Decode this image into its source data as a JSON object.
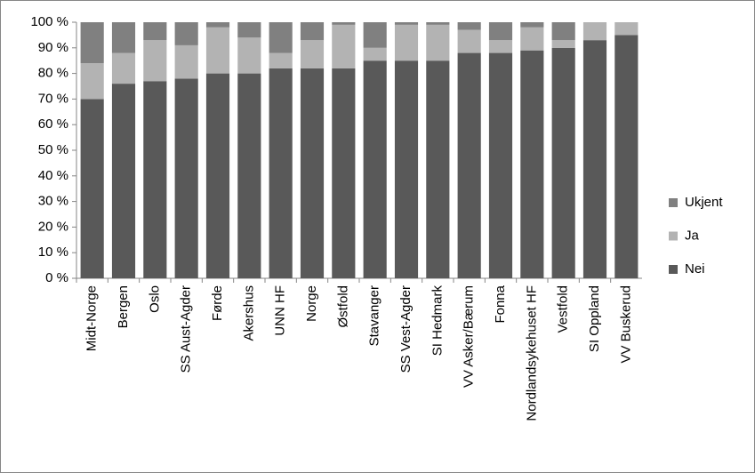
{
  "chart_data": {
    "type": "stacked_bar_100",
    "categories": [
      "Midt-Norge",
      "Bergen",
      "Oslo",
      "SS Aust-Agder",
      "Førde",
      "Akershus",
      "UNN HF",
      "Norge",
      "Østfold",
      "Stavanger",
      "SS Vest-Agder",
      "SI Hedmark",
      "VV Asker/Bærum",
      "Fonna",
      "Nordlandsykehuset HF",
      "Vestfold",
      "SI Oppland",
      "VV Buskerud"
    ],
    "series": [
      {
        "name": "Nei",
        "color": "#595959",
        "values": [
          70,
          76,
          77,
          78,
          80,
          80,
          82,
          82,
          82,
          85,
          85,
          85,
          88,
          88,
          89,
          90,
          93,
          95
        ]
      },
      {
        "name": "Ja",
        "color": "#b3b3b3",
        "values": [
          14,
          12,
          16,
          13,
          18,
          14,
          6,
          11,
          17,
          5,
          14,
          14,
          9,
          5,
          9,
          3,
          7,
          5
        ]
      },
      {
        "name": "Ukjent",
        "color": "#808080",
        "values": [
          16,
          12,
          7,
          9,
          2,
          6,
          12,
          7,
          1,
          10,
          1,
          1,
          3,
          7,
          2,
          7,
          0,
          0
        ]
      }
    ],
    "ylim": [
      0,
      100
    ],
    "yticks": [
      {
        "value": 0,
        "label": "0 %"
      },
      {
        "value": 10,
        "label": "10 %"
      },
      {
        "value": 20,
        "label": "20 %"
      },
      {
        "value": 30,
        "label": "30 %"
      },
      {
        "value": 40,
        "label": "40 %"
      },
      {
        "value": 50,
        "label": "50 %"
      },
      {
        "value": 60,
        "label": "60 %"
      },
      {
        "value": 70,
        "label": "70 %"
      },
      {
        "value": 80,
        "label": "80 %"
      },
      {
        "value": 90,
        "label": "90 %"
      },
      {
        "value": 100,
        "label": "100 %"
      }
    ],
    "grid": false,
    "legend": "right"
  }
}
